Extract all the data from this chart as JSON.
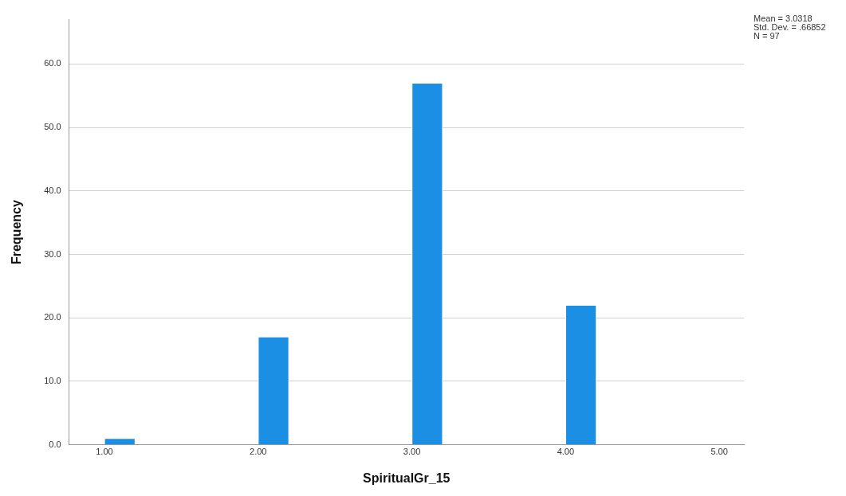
{
  "chart_data": {
    "type": "histogram",
    "xlabel": "SpiritualGr_15",
    "ylabel": "Frequency",
    "bins": [
      1.0,
      1.2,
      1.4,
      1.6,
      1.8,
      2.0,
      2.2,
      2.4,
      2.6,
      2.8,
      3.0,
      3.2,
      3.4,
      3.6,
      3.8,
      4.0,
      4.2
    ],
    "values": [
      1,
      0,
      0,
      0,
      0,
      17,
      0,
      0,
      0,
      0,
      57,
      0,
      0,
      0,
      0,
      22
    ],
    "color": "#1a8fe3",
    "xlim": [
      0.77,
      5.16
    ],
    "xticks": [
      {
        "value": 1,
        "label": "1.00"
      },
      {
        "value": 2,
        "label": "2.00"
      },
      {
        "value": 3,
        "label": "3.00"
      },
      {
        "value": 4,
        "label": "4.00"
      },
      {
        "value": 5,
        "label": "5.00"
      }
    ],
    "ylim": [
      0,
      67
    ],
    "yticks": [
      {
        "value": 0,
        "label": "0.0"
      },
      {
        "value": 10,
        "label": "10.0"
      },
      {
        "value": 20,
        "label": "20.0"
      },
      {
        "value": 30,
        "label": "30.0"
      },
      {
        "value": 40,
        "label": "40.0"
      },
      {
        "value": 50,
        "label": "50.0"
      },
      {
        "value": 60,
        "label": "60.0"
      }
    ],
    "grid": "y",
    "legend": false,
    "annotations": [
      "Mean = 3.0318",
      "Std. Dev. = .66852",
      "N = 97"
    ]
  }
}
